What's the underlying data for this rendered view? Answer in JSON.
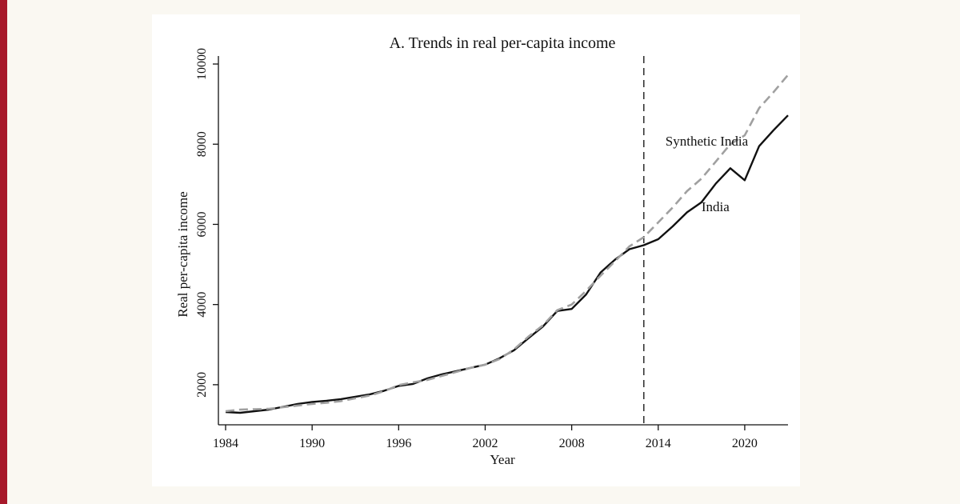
{
  "colors": {
    "accent_bar": "#a71a2a",
    "india_line": "#111111",
    "synthetic_line": "#a0a0a0",
    "treatment_line": "#333333"
  },
  "chart_data": {
    "type": "line",
    "title": "A. Trends in real per-capita income",
    "xlabel": "Year",
    "ylabel": "Real per-capita income",
    "xlim": [
      1983.5,
      2023
    ],
    "ylim": [
      1000,
      10200
    ],
    "x_ticks": [
      1984,
      1990,
      1996,
      2002,
      2008,
      2014,
      2020
    ],
    "y_ticks": [
      2000,
      4000,
      6000,
      8000,
      10000
    ],
    "grid": false,
    "treatment_year": 2013,
    "annotations": [
      {
        "text": "Synthetic India",
        "x": 2014.5,
        "y": 7960
      },
      {
        "text": "India",
        "x": 2017,
        "y": 6330
      }
    ],
    "x": [
      1984,
      1985,
      1986,
      1987,
      1988,
      1989,
      1990,
      1991,
      1992,
      1993,
      1994,
      1995,
      1996,
      1997,
      1998,
      1999,
      2000,
      2001,
      2002,
      2003,
      2004,
      2005,
      2006,
      2007,
      2008,
      2009,
      2010,
      2011,
      2012,
      2013,
      2014,
      2015,
      2016,
      2017,
      2018,
      2019,
      2020,
      2021,
      2022,
      2023
    ],
    "series": [
      {
        "name": "India",
        "style": "solid",
        "values": [
          1320,
          1300,
          1340,
          1380,
          1450,
          1520,
          1570,
          1600,
          1640,
          1700,
          1760,
          1850,
          1970,
          2020,
          2160,
          2260,
          2340,
          2420,
          2500,
          2660,
          2860,
          3160,
          3450,
          3840,
          3890,
          4250,
          4800,
          5120,
          5380,
          5480,
          5630,
          5950,
          6300,
          6550,
          7020,
          7400,
          7100,
          7950,
          8350,
          8720
        ]
      },
      {
        "name": "Synthetic India",
        "style": "dashed",
        "values": [
          1340,
          1380,
          1390,
          1400,
          1440,
          1480,
          1520,
          1550,
          1590,
          1660,
          1730,
          1840,
          1990,
          2060,
          2120,
          2220,
          2320,
          2420,
          2500,
          2640,
          2880,
          3200,
          3480,
          3860,
          4000,
          4340,
          4720,
          5080,
          5450,
          5680,
          6050,
          6420,
          6830,
          7140,
          7570,
          8000,
          8220,
          8900,
          9300,
          9730
        ]
      }
    ]
  }
}
